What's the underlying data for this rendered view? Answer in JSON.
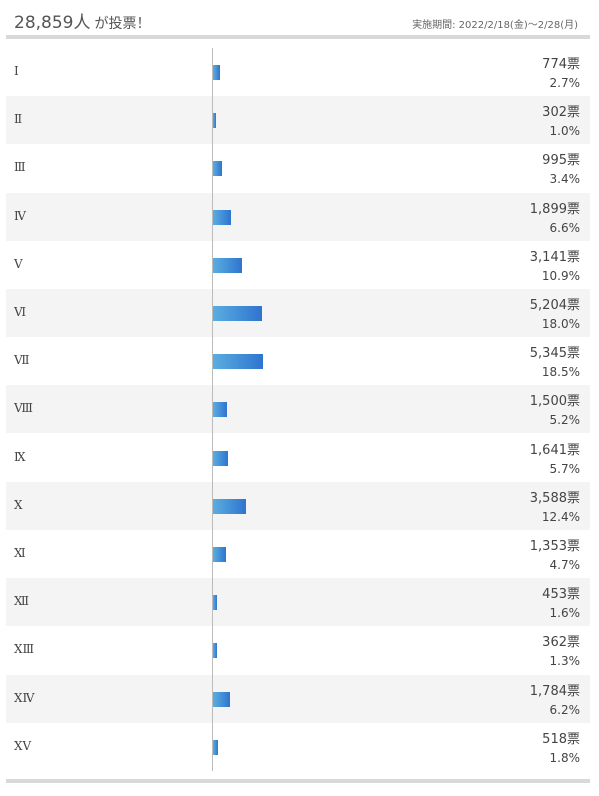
{
  "header": {
    "total_count": "28,859",
    "total_unit": "人",
    "total_suffix": "が投票！",
    "period": "実施期間: 2022/2/18(金)～2/28(月)"
  },
  "chart_data": {
    "type": "bar",
    "orientation": "horizontal",
    "title": "",
    "xlim": [
      0,
      100
    ],
    "bar_color": "#3a86d6",
    "categories": [
      "Ⅰ",
      "Ⅱ",
      "Ⅲ",
      "Ⅳ",
      "Ⅴ",
      "Ⅵ",
      "Ⅶ",
      "Ⅷ",
      "Ⅸ",
      "Ⅹ",
      "Ⅺ",
      "Ⅻ",
      "XⅢ",
      "XⅣ",
      "XⅤ"
    ],
    "votes": [
      774,
      302,
      995,
      1899,
      3141,
      5204,
      5345,
      1500,
      1641,
      3588,
      1353,
      453,
      362,
      1784,
      518
    ],
    "votes_labels": [
      "774票",
      "302票",
      "995票",
      "1,899票",
      "3,141票",
      "5,204票",
      "5,345票",
      "1,500票",
      "1,641票",
      "3,588票",
      "1,353票",
      "453票",
      "362票",
      "1,784票",
      "518票"
    ],
    "percent": [
      2.7,
      1.0,
      3.4,
      6.6,
      10.9,
      18.0,
      18.5,
      5.2,
      5.7,
      12.4,
      4.7,
      1.6,
      1.3,
      6.2,
      1.8
    ],
    "percent_labels": [
      "2.7%",
      "1.0%",
      "3.4%",
      "6.6%",
      "10.9%",
      "18.0%",
      "18.5%",
      "5.2%",
      "5.7%",
      "12.4%",
      "4.7%",
      "1.6%",
      "1.3%",
      "6.2%",
      "1.8%"
    ]
  }
}
